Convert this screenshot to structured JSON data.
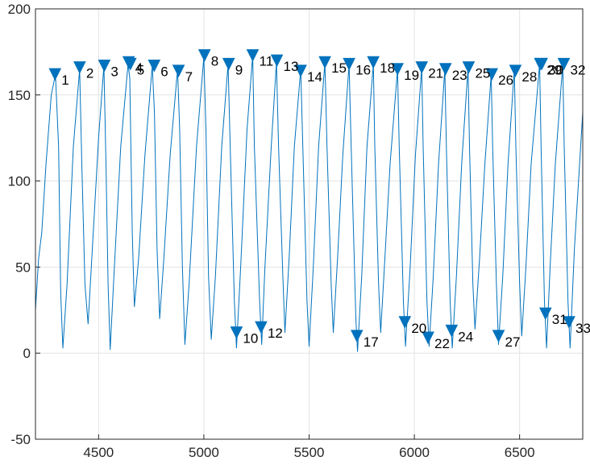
{
  "chart_data": {
    "type": "line",
    "title": "",
    "xlabel": "",
    "ylabel": "",
    "xlim": [
      4200,
      6800
    ],
    "ylim": [
      -50,
      200
    ],
    "xticks": [
      4500,
      5000,
      5500,
      6000,
      6500
    ],
    "yticks": [
      -50,
      0,
      50,
      100,
      150,
      200
    ],
    "xtick_labels": [
      "4500",
      "5000",
      "5500",
      "6000",
      "6500"
    ],
    "ytick_labels": [
      "-50",
      "0",
      "50",
      "100",
      "150",
      "200"
    ],
    "grid": true,
    "line_color": "#0072BD",
    "marker_color": "#0072BD",
    "series": [
      {
        "x": [
          4200,
          4215,
          4230,
          4250,
          4275,
          4295,
          4310,
          4320,
          4330,
          4350,
          4380,
          4410,
          4420,
          4435,
          4450,
          4470,
          4500,
          4525,
          4535,
          4545,
          4555,
          4575,
          4605,
          4640,
          4648,
          4660,
          4670,
          4690,
          4720,
          4755,
          4765,
          4778,
          4790,
          4810,
          4840,
          4875,
          4885,
          4898,
          4910,
          4930,
          4965,
          5000,
          5010,
          5022,
          5035,
          5055,
          5085,
          5115,
          5125,
          5145,
          5155,
          5175,
          5205,
          5232,
          5240,
          5265,
          5275,
          5290,
          5320,
          5345,
          5355,
          5375,
          5385,
          5405,
          5430,
          5460,
          5470,
          5490,
          5500,
          5520,
          5545,
          5575,
          5585,
          5605,
          5615,
          5635,
          5660,
          5690,
          5700,
          5722,
          5730,
          5750,
          5775,
          5805,
          5812,
          5830,
          5840,
          5860,
          5885,
          5920,
          5928,
          5948,
          5958,
          5980,
          6005,
          6035,
          6042,
          6060,
          6070,
          6090,
          6115,
          6145,
          6152,
          6170,
          6180,
          6200,
          6225,
          6255,
          6262,
          6278,
          6288,
          6310,
          6335,
          6365,
          6372,
          6390,
          6400,
          6420,
          6445,
          6475,
          6482,
          6500,
          6510,
          6530,
          6555,
          6595,
          6602,
          6618,
          6628,
          6645,
          6670,
          6705,
          6712,
          6730,
          6740,
          6760,
          6785,
          6800
        ],
        "y": [
          25,
          55,
          70,
          110,
          150,
          162,
          120,
          35,
          3,
          40,
          120,
          165,
          110,
          40,
          17,
          60,
          125,
          167,
          110,
          40,
          2,
          50,
          120,
          168,
          160,
          70,
          27,
          55,
          115,
          167,
          140,
          60,
          20,
          55,
          115,
          165,
          130,
          50,
          5,
          40,
          120,
          172,
          130,
          45,
          8,
          45,
          120,
          168,
          120,
          30,
          3,
          50,
          130,
          173,
          120,
          30,
          5,
          50,
          120,
          169,
          120,
          45,
          12,
          55,
          120,
          165,
          120,
          30,
          4,
          50,
          120,
          169,
          120,
          40,
          12,
          55,
          115,
          168,
          120,
          20,
          1,
          45,
          120,
          168,
          120,
          40,
          12,
          55,
          110,
          165,
          120,
          30,
          4,
          50,
          115,
          166,
          120,
          30,
          4,
          45,
          110,
          165,
          120,
          30,
          3,
          45,
          110,
          166,
          120,
          40,
          14,
          55,
          110,
          162,
          120,
          40,
          5,
          45,
          110,
          165,
          120,
          40,
          10,
          50,
          110,
          168,
          120,
          30,
          3,
          50,
          110,
          168,
          120,
          30,
          3,
          60,
          110,
          140
        ]
      }
    ],
    "markers": [
      {
        "label": "1",
        "x": 4293,
        "y": 162
      },
      {
        "label": "2",
        "x": 4410,
        "y": 166
      },
      {
        "label": "3",
        "x": 4527,
        "y": 167
      },
      {
        "label": "4",
        "x": 4643,
        "y": 169
      },
      {
        "label": "5",
        "x": 4651,
        "y": 168
      },
      {
        "label": "6",
        "x": 4764,
        "y": 167
      },
      {
        "label": "7",
        "x": 4880,
        "y": 164
      },
      {
        "label": "8",
        "x": 5003,
        "y": 173
      },
      {
        "label": "9",
        "x": 5118,
        "y": 168
      },
      {
        "label": "10",
        "x": 5155,
        "y": 12
      },
      {
        "label": "11",
        "x": 5232,
        "y": 173
      },
      {
        "label": "12",
        "x": 5272,
        "y": 15
      },
      {
        "label": "13",
        "x": 5347,
        "y": 170
      },
      {
        "label": "14",
        "x": 5460,
        "y": 164
      },
      {
        "label": "15",
        "x": 5575,
        "y": 169
      },
      {
        "label": "16",
        "x": 5690,
        "y": 168
      },
      {
        "label": "17",
        "x": 5727,
        "y": 10
      },
      {
        "label": "18",
        "x": 5805,
        "y": 169
      },
      {
        "label": "19",
        "x": 5920,
        "y": 165
      },
      {
        "label": "20",
        "x": 5955,
        "y": 18
      },
      {
        "label": "21",
        "x": 6035,
        "y": 166
      },
      {
        "label": "22",
        "x": 6065,
        "y": 9
      },
      {
        "label": "23",
        "x": 6148,
        "y": 165
      },
      {
        "label": "24",
        "x": 6177,
        "y": 13
      },
      {
        "label": "25",
        "x": 6258,
        "y": 166
      },
      {
        "label": "26",
        "x": 6368,
        "y": 162
      },
      {
        "label": "27",
        "x": 6400,
        "y": 10
      },
      {
        "label": "28",
        "x": 6480,
        "y": 164
      },
      {
        "label": "29",
        "x": 6598,
        "y": 168
      },
      {
        "label": "30",
        "x": 6605,
        "y": 168
      },
      {
        "label": "31",
        "x": 6623,
        "y": 23
      },
      {
        "label": "32",
        "x": 6710,
        "y": 168
      },
      {
        "label": "33",
        "x": 6735,
        "y": 18
      }
    ]
  }
}
